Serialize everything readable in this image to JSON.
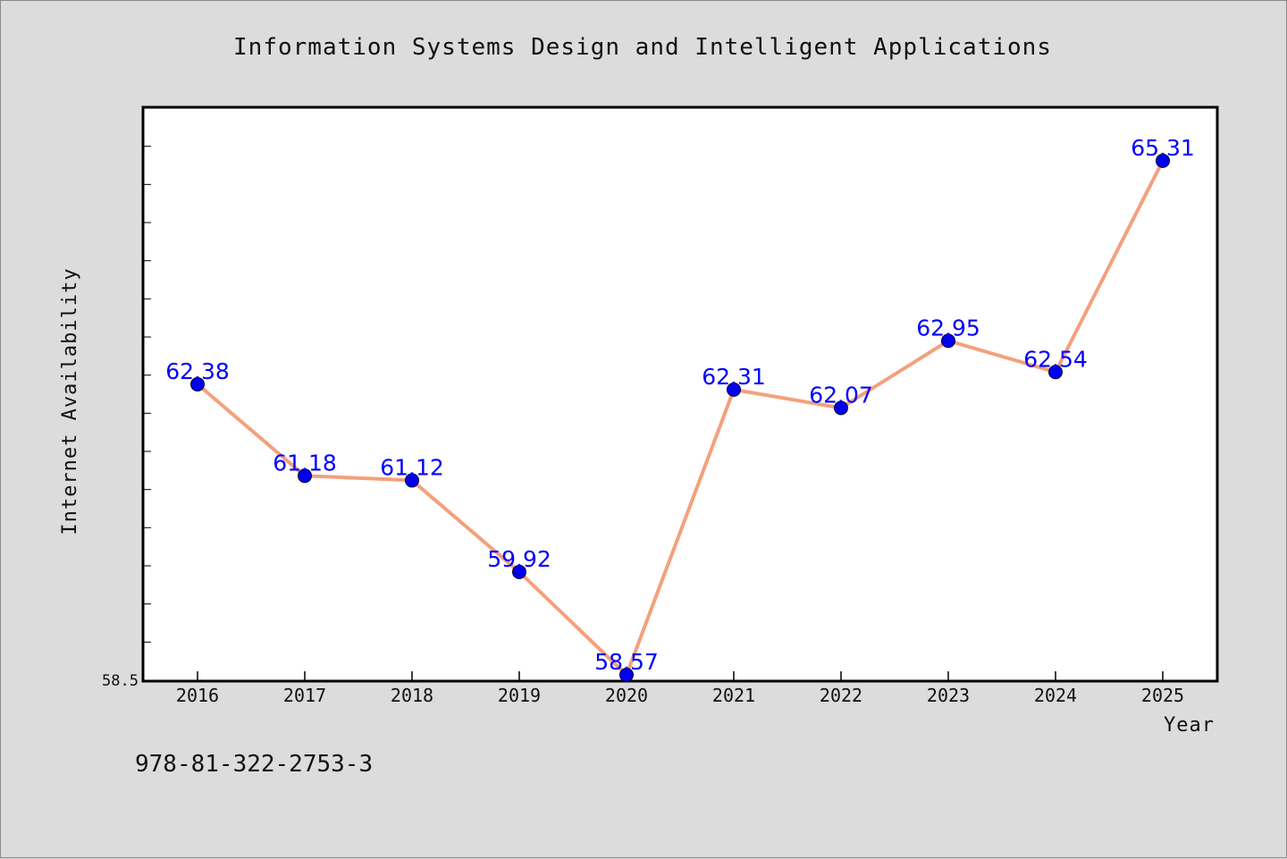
{
  "chart_data": {
    "type": "line",
    "title": "Information Systems Design and Intelligent Applications",
    "xlabel": "Year",
    "ylabel": "Internet Availability",
    "categories": [
      "2016",
      "2017",
      "2018",
      "2019",
      "2020",
      "2021",
      "2022",
      "2023",
      "2024",
      "2025"
    ],
    "series": [
      {
        "values": [
          62.38,
          61.18,
          61.12,
          59.92,
          58.57,
          62.31,
          62.07,
          62.95,
          62.54,
          65.31
        ]
      }
    ],
    "data_labels": [
      "62.38",
      "61.18",
      "61.12",
      "59.92",
      "58.57",
      "62.31",
      "62.07",
      "62.95",
      "62.54",
      "65.31"
    ],
    "yticks": [
      "58.5"
    ],
    "ylim": [
      58.5,
      66.0
    ],
    "grid": false,
    "colors": {
      "line": "#f4a07c",
      "marker": "#0000ee",
      "label": "#0000ff",
      "background": "#dcdcdc",
      "plot_background": "#ffffff"
    }
  },
  "footer": {
    "isbn": "978-81-322-2753-3"
  }
}
